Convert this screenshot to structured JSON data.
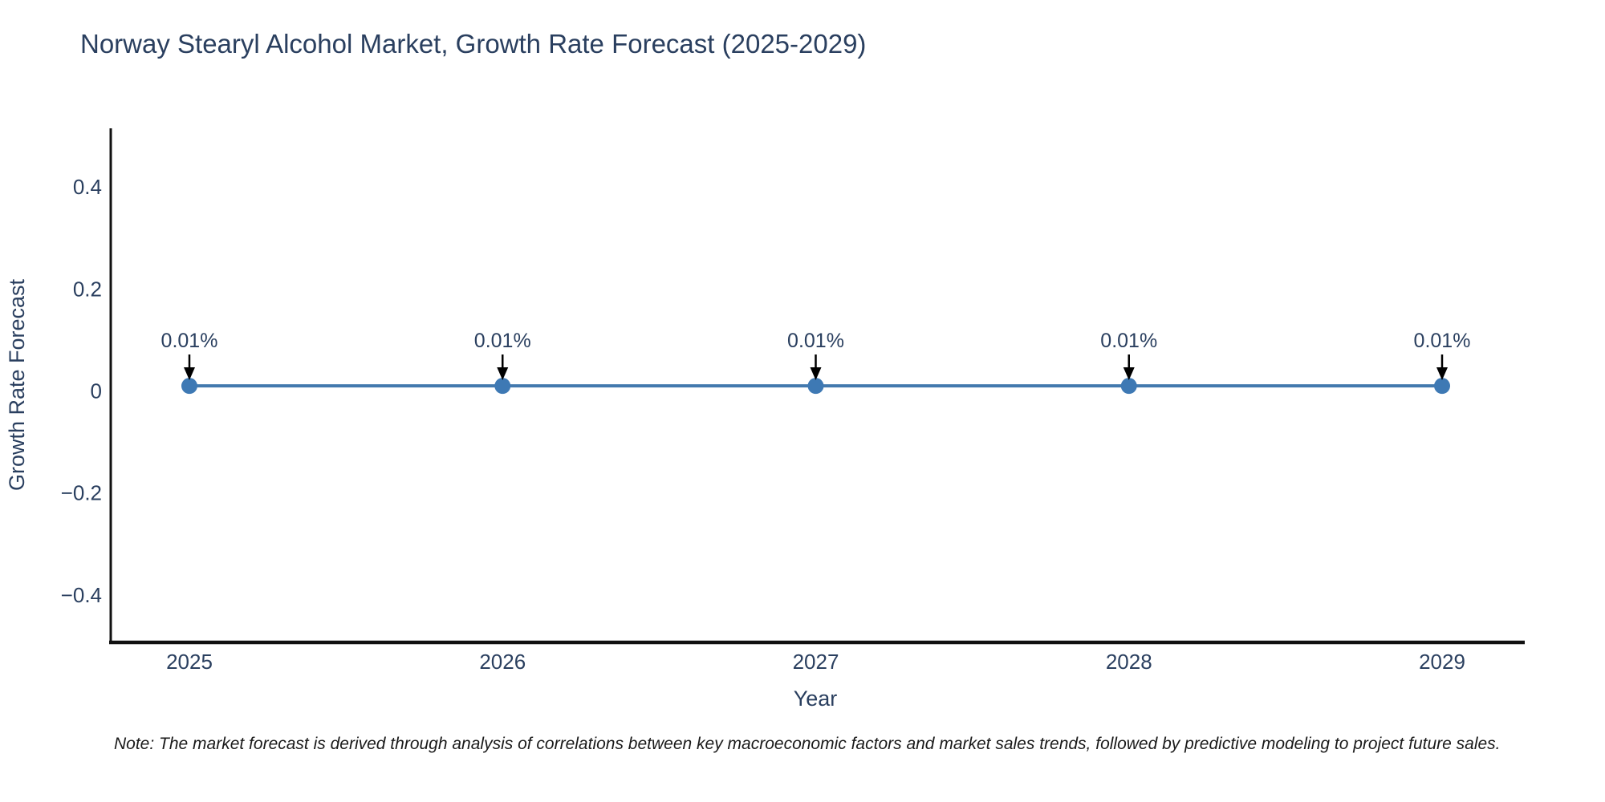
{
  "title": "Norway Stearyl Alcohol Market, Growth Rate Forecast (2025-2029)",
  "note": "Note: The market forecast is derived through analysis of correlations between key macroeconomic factors and market sales trends, followed by predictive modeling to project future sales.",
  "chart_data": {
    "type": "line",
    "title": "Norway Stearyl Alcohol Market, Growth Rate Forecast (2025-2029)",
    "xlabel": "Year",
    "ylabel": "Growth Rate Forecast",
    "x": [
      2025,
      2026,
      2027,
      2028,
      2029
    ],
    "series": [
      {
        "name": "Growth Rate Forecast",
        "values": [
          0.01,
          0.01,
          0.01,
          0.01,
          0.01
        ]
      }
    ],
    "annotations": [
      "0.01%",
      "0.01%",
      "0.01%",
      "0.01%",
      "0.01%"
    ],
    "yticks": [
      0.4,
      0.2,
      0,
      -0.2,
      -0.4
    ],
    "ylim": [
      -0.49,
      0.51
    ],
    "grid": false,
    "legend": false,
    "colors": {
      "line": "#4379AE",
      "marker": "#3E79B4",
      "axis": "#111111",
      "text": "#2a3f5f",
      "arrow": "#000000"
    }
  }
}
